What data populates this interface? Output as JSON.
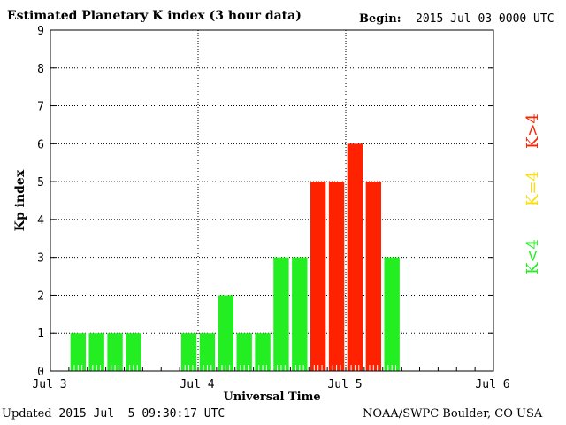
{
  "header": {
    "title": "Estimated Planetary K index (3 hour data)",
    "begin_label": "Begin:",
    "begin_value": "2015 Jul 03 0000 UTC"
  },
  "footer": {
    "updated_label": "Updated",
    "updated_value": " 2015 Jul  5 09:30:17 UTC",
    "source": "NOAA/SWPC Boulder, CO USA"
  },
  "colors": {
    "low": "#22ee22",
    "moderate": "#ffdd00",
    "high": "#ff2200"
  },
  "chart_data": {
    "type": "bar",
    "title": "Estimated Planetary K index (3 hour data)",
    "xlabel": "Universal Time",
    "ylabel": "Kp index",
    "ylim": [
      0,
      9
    ],
    "yticks": [
      0,
      1,
      2,
      3,
      4,
      5,
      6,
      7,
      8,
      9
    ],
    "xticks": [
      "Jul 3",
      "Jul 4",
      "Jul 5",
      "Jul 6"
    ],
    "grid": true,
    "bar_interval_hours": 3,
    "start": "2015 Jul 03 0000 UTC",
    "legend": [
      {
        "label": "K<4",
        "color": "#22ee22"
      },
      {
        "label": "K=4",
        "color": "#ffdd00"
      },
      {
        "label": "K>4",
        "color": "#ff2200"
      }
    ],
    "bars": [
      {
        "start": "2015-07-03 03:00",
        "value": 1
      },
      {
        "start": "2015-07-03 06:00",
        "value": 1
      },
      {
        "start": "2015-07-03 09:00",
        "value": 1
      },
      {
        "start": "2015-07-03 12:00",
        "value": 1
      },
      {
        "start": "2015-07-03 21:00",
        "value": 1
      },
      {
        "start": "2015-07-04 00:00",
        "value": 1
      },
      {
        "start": "2015-07-04 03:00",
        "value": 2
      },
      {
        "start": "2015-07-04 06:00",
        "value": 1
      },
      {
        "start": "2015-07-04 09:00",
        "value": 1
      },
      {
        "start": "2015-07-04 12:00",
        "value": 3
      },
      {
        "start": "2015-07-04 15:00",
        "value": 3
      },
      {
        "start": "2015-07-04 18:00",
        "value": 5
      },
      {
        "start": "2015-07-04 21:00",
        "value": 5
      },
      {
        "start": "2015-07-05 00:00",
        "value": 6
      },
      {
        "start": "2015-07-05 03:00",
        "value": 5
      },
      {
        "start": "2015-07-05 06:00",
        "value": 3
      }
    ]
  }
}
